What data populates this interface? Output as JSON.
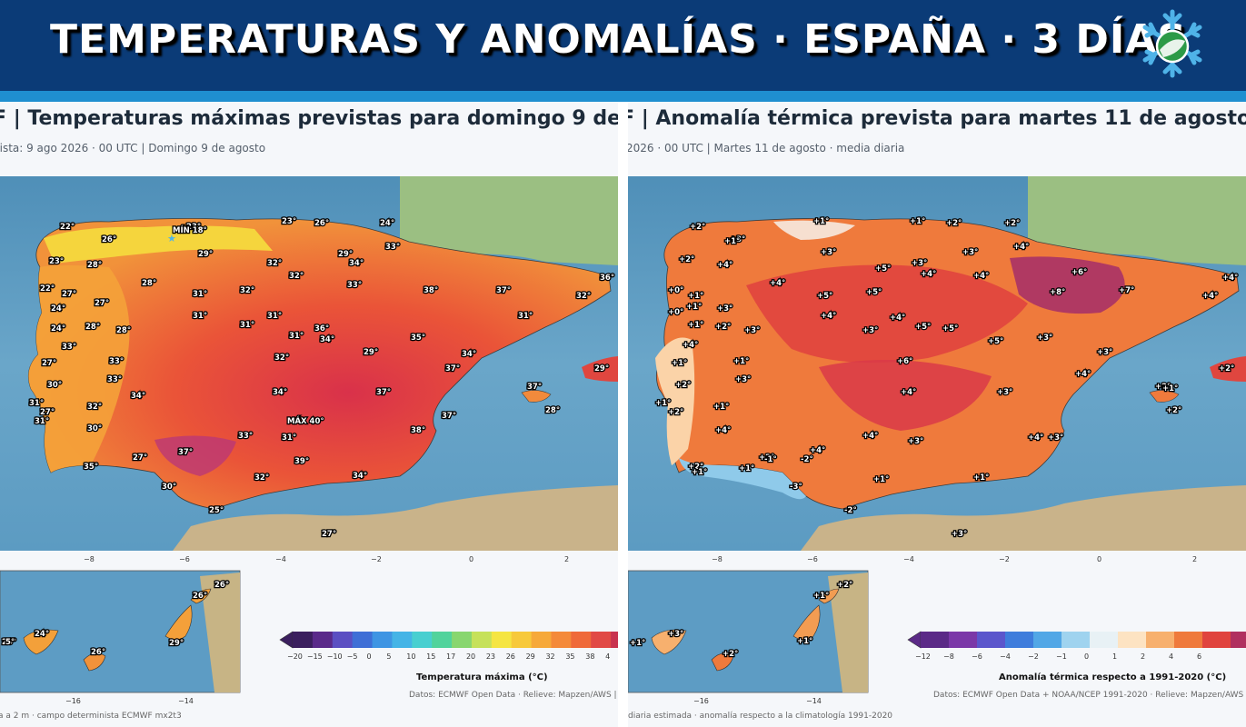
{
  "banner": {
    "title": "TEMPERATURAS Y ANOMALÍAS · ESPAÑA · 3 DÍAS",
    "logo_icon": "snowflake-globe-icon"
  },
  "left": {
    "title": "F | Temperaturas máximas previstas para domingo 9 de",
    "subtitle": "nista: 9 ago 2026 · 00 UTC  |  Domingo 9 de agosto",
    "x_ticks": [
      "−8",
      "−6",
      "−4",
      "−2",
      "0",
      "2"
    ],
    "canary_ticks": [
      "−16",
      "−14"
    ],
    "colorbar": {
      "title": "Temperatura máxima (°C)",
      "ticks": [
        "−20",
        "−15",
        "−10",
        "−5",
        "0",
        "5",
        "10",
        "15",
        "17",
        "20",
        "23",
        "26",
        "29",
        "32",
        "35",
        "38",
        "4"
      ],
      "colors": [
        "#3b1f5e",
        "#5a2a8a",
        "#5b4fc2",
        "#3f6fd6",
        "#3f95e3",
        "#45b4e6",
        "#49cfd0",
        "#52d39c",
        "#88d66f",
        "#c6e15a",
        "#f5e542",
        "#f7c93b",
        "#f6a93a",
        "#f48a3a",
        "#ef6a3a",
        "#e14a45",
        "#c8334f"
      ]
    },
    "source": "Datos: ECMWF Open Data · Relieve: Mapzen/AWS  |",
    "footnote": "a a 2 m · campo determinista ECMWF mx2t3",
    "extremes": {
      "min": "MÍN 18°",
      "max": "MÁX 40°"
    },
    "labels": [
      "22°",
      "23°",
      "23°",
      "26°",
      "24°",
      "26°",
      "29°",
      "29°",
      "34°",
      "33°",
      "23°",
      "28°",
      "32°",
      "32°",
      "22°",
      "27°",
      "28°",
      "31°",
      "32°",
      "33°",
      "38°",
      "37°",
      "32°",
      "36°",
      "24°",
      "27°",
      "31°",
      "31°",
      "31°",
      "34°",
      "31°",
      "24°",
      "28°",
      "28°",
      "31°",
      "36°",
      "35°",
      "33°",
      "29°",
      "34°",
      "33°",
      "27°",
      "33°",
      "37°",
      "32°",
      "34°",
      "30°",
      "31°",
      "34°",
      "37°",
      "37°",
      "31°",
      "27°",
      "32°",
      "28°",
      "30°",
      "33°",
      "38°",
      "37°",
      "31°",
      "37°",
      "39°",
      "35°",
      "27°",
      "34°",
      "32°",
      "30°",
      "25°",
      "27°",
      "29°",
      "26°",
      "24°",
      "26°",
      "29°",
      "26°",
      "26°",
      "5°"
    ]
  },
  "right": {
    "title": "F | Anomalía térmica prevista para martes 11 de agosto",
    "subtitle": "2026 · 00 UTC  |  Martes 11 de agosto · media diaria",
    "x_ticks": [
      "−8",
      "−6",
      "−4",
      "−2",
      "0",
      "2"
    ],
    "canary_ticks": [
      "−16",
      "−14"
    ],
    "colorbar": {
      "title": "Anomalía térmica respecto a 1991-2020 (°C)",
      "ticks": [
        "−12",
        "−8",
        "−6",
        "−4",
        "−2",
        "−1",
        "0",
        "1",
        "2",
        "4",
        "6"
      ],
      "colors": [
        "#5b2a87",
        "#7b38a8",
        "#5b56cc",
        "#3f7ddc",
        "#52a7e6",
        "#9fd3ef",
        "#e8f1f5",
        "#fde3c2",
        "#f7b06e",
        "#ef7a3c",
        "#e0443e",
        "#b0305f"
      ]
    },
    "source": "Datos: ECMWF Open Data + NOAA/NCEP 1991-2020 · Relieve: Mapzen/AWS  |",
    "footnote": "diaria estimada · anomalía respecto a la climatología 1991-2020",
    "labels": [
      "+2°",
      "+1°",
      "+1°",
      "+2°",
      "+2°",
      "+3°",
      "+1°",
      "+3°",
      "+3°",
      "+4°",
      "+2°",
      "+4°",
      "+3°",
      "+4°",
      "+5°",
      "+4°",
      "+6°",
      "+0°",
      "+1°",
      "+4°",
      "+5°",
      "+5°",
      "+8°",
      "+7°",
      "+4°",
      "+4°",
      "+0°",
      "+1°",
      "+3°",
      "+4°",
      "+4°",
      "+5°",
      "+1°",
      "+2°",
      "+3°",
      "+3°",
      "+5°",
      "+5°",
      "+3°",
      "+3°",
      "+4°",
      "+1°",
      "+1°",
      "+3°",
      "+6°",
      "+4°",
      "+4°",
      "+3°",
      "+2°",
      "+1°",
      "+2°",
      "+4°",
      "+2°",
      "+4°",
      "+1°",
      "+4°",
      "+3°",
      "+3°",
      "+2°",
      "+4°",
      "+2°",
      "+1°",
      "-2°",
      "+1°",
      "-1°",
      "+1°",
      "+1°",
      "-3°",
      "-2°",
      "+3°",
      "+2°",
      "+2°",
      "+1°",
      "+1°",
      "+2°",
      "+1°",
      "+3°",
      "+2°",
      "+1°"
    ]
  }
}
